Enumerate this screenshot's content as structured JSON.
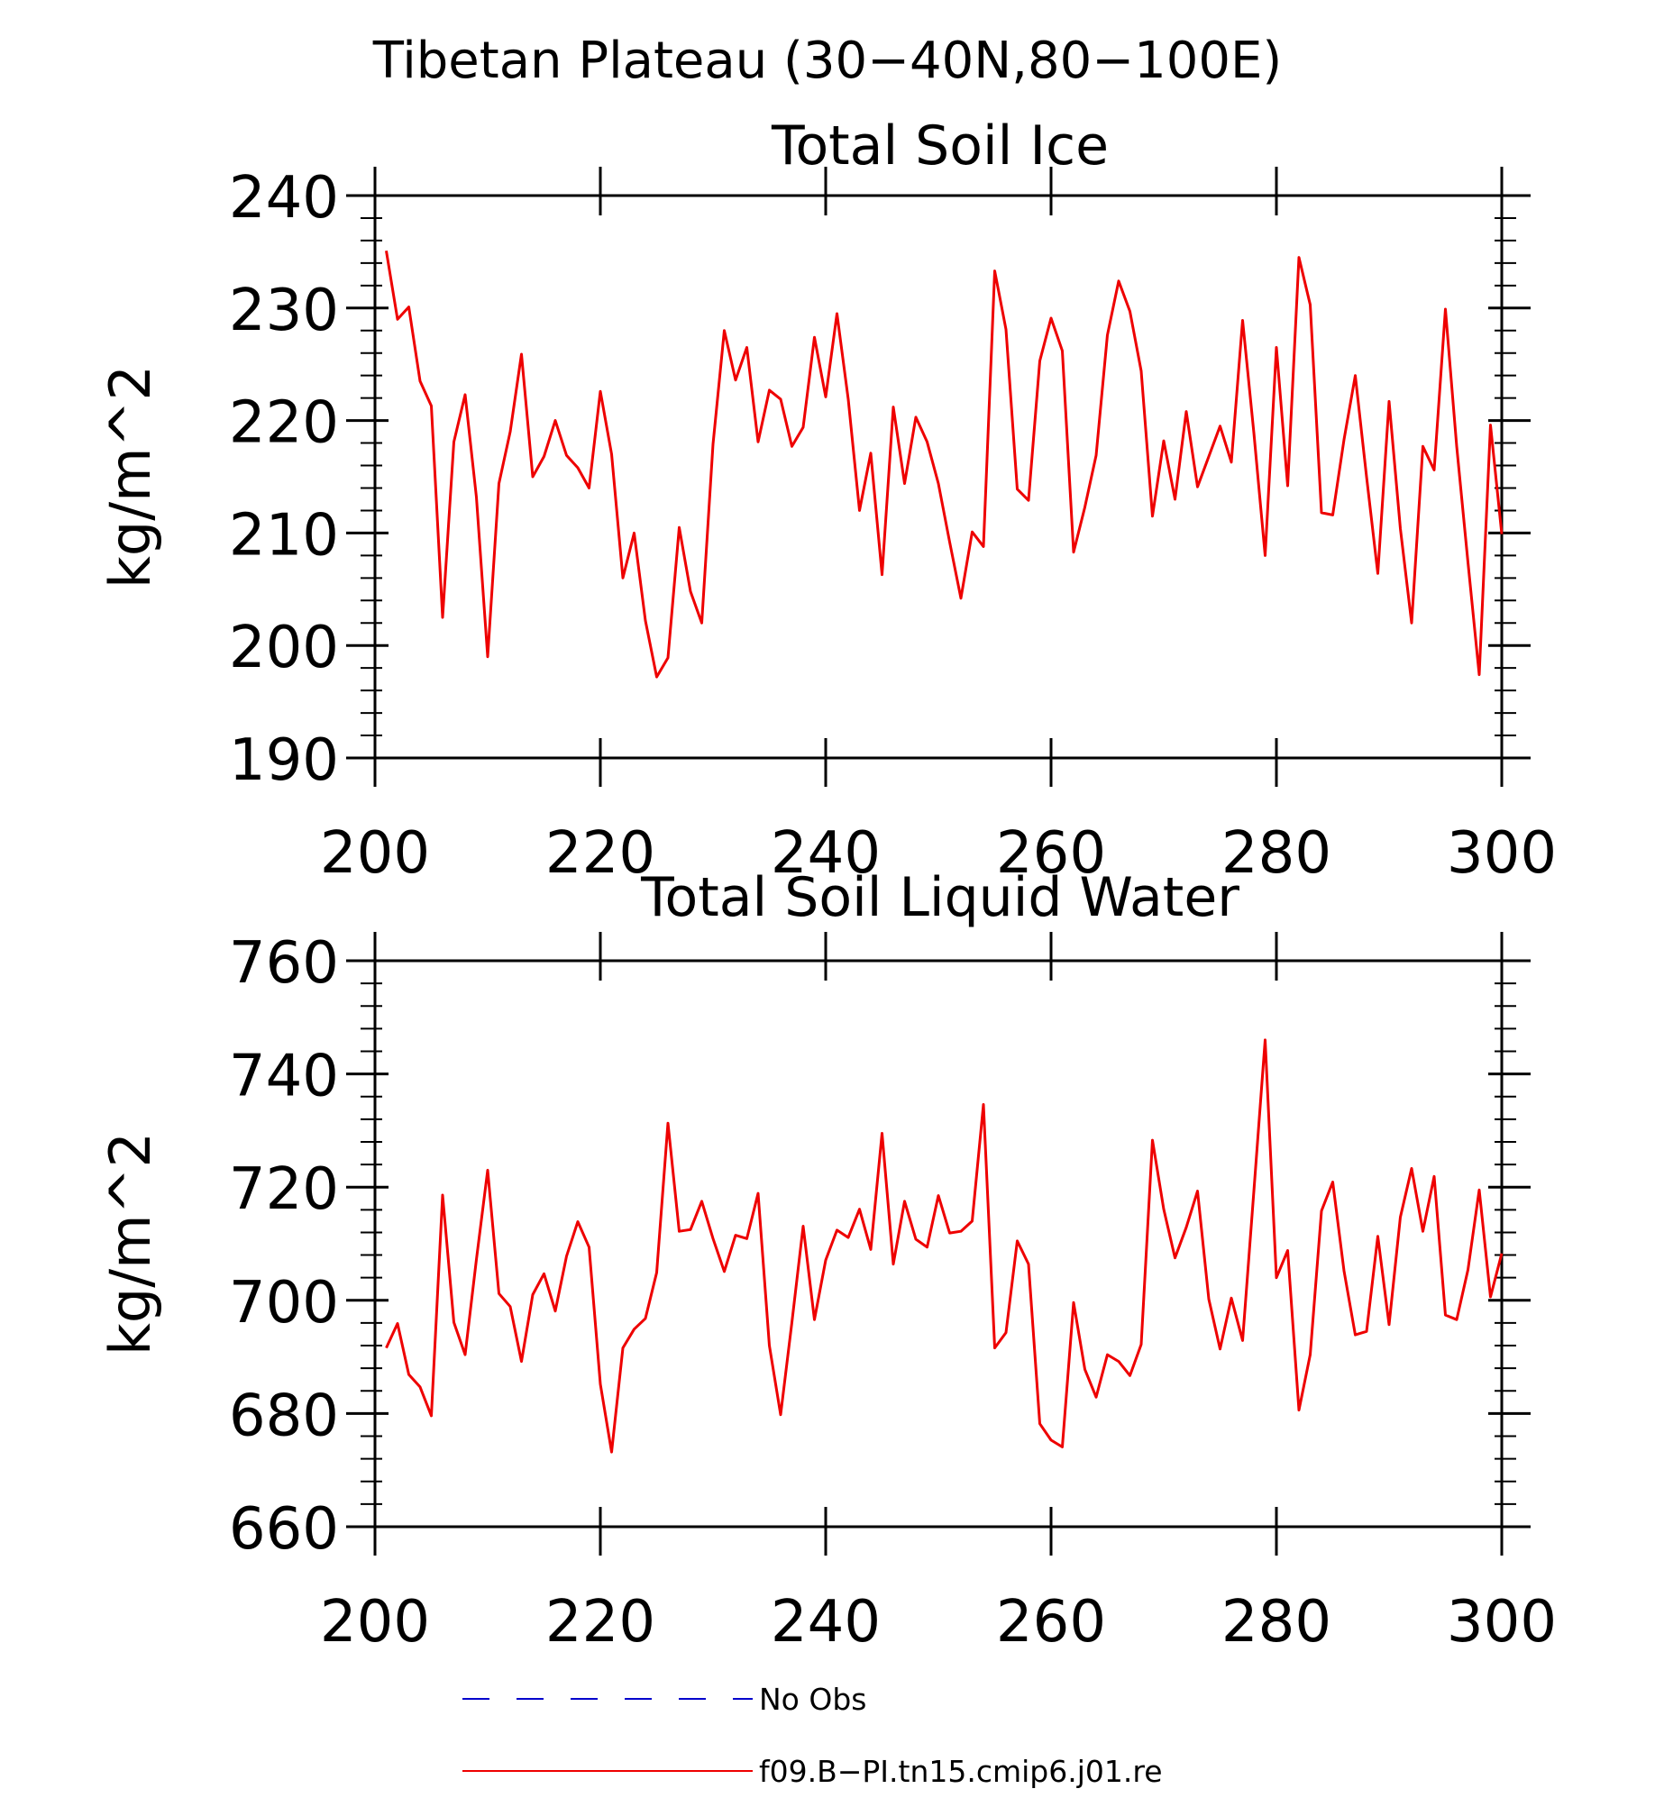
{
  "figure": {
    "title": "Tibetan Plateau (30−40N,80−100E)",
    "line_color": "#ee0000",
    "obs_color": "#0000cc"
  },
  "legend": {
    "obs_label": "No Obs",
    "model_label": "f09.B−PI.tn15.cmip6.j01.re"
  },
  "chart_data": [
    {
      "type": "line",
      "title": "Total Soil Ice",
      "ylabel": "kg/m^2",
      "xlabel": "",
      "xlim": [
        200,
        300
      ],
      "ylim": [
        190,
        240
      ],
      "xticks": [
        "200",
        "220",
        "240",
        "260",
        "280",
        "300"
      ],
      "yticks": [
        "190",
        "200",
        "210",
        "220",
        "230",
        "240"
      ],
      "series": [
        {
          "x": [
            201,
            202,
            203,
            204,
            205,
            206,
            207,
            208,
            209,
            210,
            211,
            212,
            213,
            214,
            215,
            216,
            217,
            218,
            219,
            220,
            221,
            222,
            223,
            224,
            225,
            226,
            227,
            228,
            229,
            230,
            231,
            232,
            233,
            234,
            235,
            236,
            237,
            238,
            239,
            240,
            241,
            242,
            243,
            244,
            245,
            246,
            247,
            248,
            249,
            250,
            251,
            252,
            253,
            254,
            255,
            256,
            257,
            258,
            259,
            260,
            261,
            262,
            263,
            264,
            265,
            266,
            267,
            268,
            269,
            270,
            271,
            272,
            273,
            274,
            275,
            276,
            277,
            278,
            279,
            280,
            281,
            282,
            283,
            284,
            285,
            286,
            287,
            288,
            289,
            290,
            291,
            292,
            293,
            294,
            295,
            296,
            297,
            298,
            299,
            300
          ],
          "values": [
            235.1,
            229.0,
            230.1,
            223.5,
            221.3,
            202.5,
            218.1,
            222.3,
            213.2,
            199.0,
            214.4,
            219.0,
            225.9,
            215.0,
            216.8,
            220.0,
            216.9,
            215.8,
            214.0,
            222.6,
            217.0,
            206.0,
            210.0,
            202.2,
            197.2,
            198.9,
            210.5,
            204.8,
            202.0,
            217.9,
            228.0,
            223.6,
            226.5,
            218.1,
            222.7,
            221.9,
            217.7,
            219.4,
            227.4,
            222.1,
            229.5,
            221.9,
            212.0,
            217.1,
            206.3,
            221.2,
            214.4,
            220.3,
            218.1,
            214.4,
            209.2,
            204.2,
            210.1,
            208.8,
            233.3,
            228.1,
            213.9,
            212.9,
            225.3,
            229.1,
            226.2,
            208.3,
            212.3,
            216.9,
            227.6,
            232.4,
            229.7,
            224.4,
            211.5,
            218.2,
            213.0,
            220.8,
            214.1,
            216.8,
            219.5,
            216.3,
            228.9,
            218.9,
            208.0,
            226.5,
            214.2,
            234.5,
            230.3,
            211.8,
            211.6,
            218.3,
            224.0,
            215.0,
            206.4,
            221.7,
            210.4,
            202.0,
            217.7,
            215.6,
            229.9,
            217.7,
            207.4,
            197.4,
            219.6,
            209.9
          ]
        }
      ]
    },
    {
      "type": "line",
      "title": "Total Soil Liquid Water",
      "ylabel": "kg/m^2",
      "xlabel": "",
      "xlim": [
        200,
        300
      ],
      "ylim": [
        660,
        760
      ],
      "xticks": [
        "200",
        "220",
        "240",
        "260",
        "280",
        "300"
      ],
      "yticks": [
        "660",
        "680",
        "700",
        "720",
        "740",
        "760"
      ],
      "series": [
        {
          "x": [
            201,
            202,
            203,
            204,
            205,
            206,
            207,
            208,
            209,
            210,
            211,
            212,
            213,
            214,
            215,
            216,
            217,
            218,
            219,
            220,
            221,
            222,
            223,
            224,
            225,
            226,
            227,
            228,
            229,
            230,
            231,
            232,
            233,
            234,
            235,
            236,
            237,
            238,
            239,
            240,
            241,
            242,
            243,
            244,
            245,
            246,
            247,
            248,
            249,
            250,
            251,
            252,
            253,
            254,
            255,
            256,
            257,
            258,
            259,
            260,
            261,
            262,
            263,
            264,
            265,
            266,
            267,
            268,
            269,
            270,
            271,
            272,
            273,
            274,
            275,
            276,
            277,
            278,
            279,
            280,
            281,
            282,
            283,
            284,
            285,
            286,
            287,
            288,
            289,
            290,
            291,
            292,
            293,
            294,
            295,
            296,
            297,
            298,
            299,
            300
          ],
          "values": [
            691.6,
            695.9,
            686.9,
            684.7,
            679.6,
            718.6,
            696.1,
            690.4,
            707.2,
            723.0,
            701.2,
            698.9,
            689.2,
            701.0,
            704.7,
            698.1,
            707.8,
            713.9,
            709.4,
            685.2,
            673.2,
            691.6,
            694.9,
            696.8,
            704.9,
            731.3,
            712.2,
            712.5,
            717.5,
            710.9,
            705.1,
            711.5,
            710.9,
            718.9,
            692.0,
            679.8,
            696.1,
            713.1,
            696.6,
            707.1,
            712.4,
            711.1,
            716.1,
            709.0,
            729.5,
            706.4,
            717.5,
            710.8,
            709.4,
            718.5,
            711.9,
            712.2,
            714.0,
            734.6,
            691.6,
            694.3,
            710.5,
            706.4,
            678.2,
            675.3,
            674.1,
            699.6,
            687.8,
            682.9,
            690.4,
            689.2,
            686.7,
            692.2,
            728.3,
            716.1,
            707.5,
            712.9,
            719.3,
            700.2,
            691.4,
            700.4,
            692.9,
            719.3,
            746.0,
            704.0,
            708.8,
            680.6,
            690.4,
            715.8,
            720.9,
            705.2,
            693.9,
            694.5,
            711.3,
            695.7,
            714.7,
            723.3,
            712.2,
            721.9,
            697.4,
            696.6,
            705.4,
            719.5,
            700.6,
            708.3
          ]
        }
      ]
    }
  ]
}
